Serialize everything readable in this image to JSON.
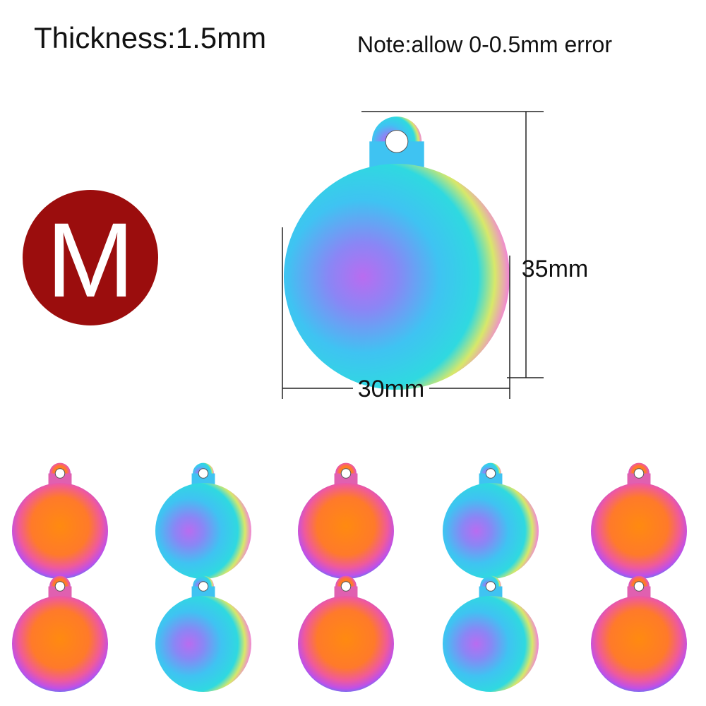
{
  "header": {
    "thickness": "Thickness:1.5mm",
    "note": "Note:allow 0-0.5mm error"
  },
  "size_badge": "M",
  "dimensions": {
    "height": "35mm",
    "width": "30mm"
  }
}
